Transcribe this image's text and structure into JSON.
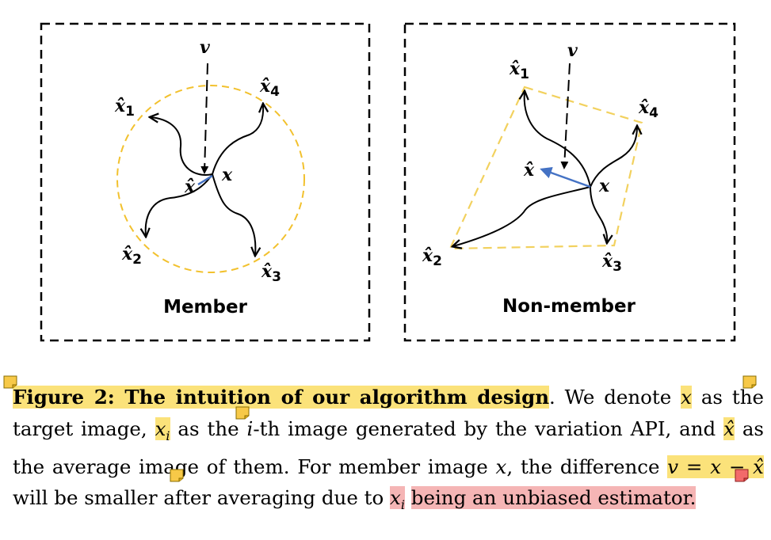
{
  "panels": {
    "member": {
      "title": "Member",
      "labels": {
        "v": "v",
        "x": "x",
        "x_hat": "x̂",
        "x1": "x̂",
        "x1_sub": "1",
        "x2": "x̂",
        "x2_sub": "2",
        "x3": "x̂",
        "x3_sub": "3",
        "x4": "x̂",
        "x4_sub": "4"
      }
    },
    "nonmember": {
      "title": "Non-member",
      "labels": {
        "v": "v",
        "x": "x",
        "x_hat": "x̂",
        "x1": "x̂",
        "x1_sub": "1",
        "x2": "x̂",
        "x2_sub": "2",
        "x3": "x̂",
        "x3_sub": "3",
        "x4": "x̂",
        "x4_sub": "4"
      }
    }
  },
  "caption": {
    "title": "Figure 2: The intuition of our algorithm design",
    "t1": ". We denote ",
    "x": "x",
    "t2": " as the target image, ",
    "xi": "x",
    "i": "i",
    "t3": " as the ",
    "ith_i": "i",
    "t4": "-th image generated by the variation API, and ",
    "xhat": "x̂",
    "t5": " as the average image of them. For member image ",
    "x2": "x",
    "t6": ", the difference ",
    "eq": "v = x − x̂",
    "t7": " will be smaller after averaging due to ",
    "xi2": "x",
    "i2": "i",
    "t8": "being an unbiased estimator."
  },
  "colors": {
    "highlight_yellow": "#fbe27a",
    "highlight_red": "#f5b5b5",
    "circle": "#f2c12e",
    "arrow_blue": "#4472c4"
  }
}
